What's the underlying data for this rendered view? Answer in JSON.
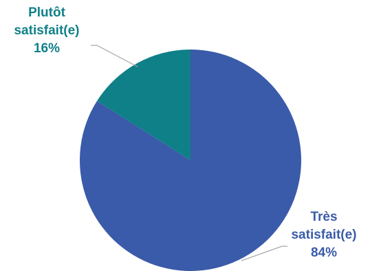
{
  "chart_data": {
    "type": "pie",
    "start_angle_deg": 0,
    "direction": "clockwise",
    "slices": [
      {
        "id": "tres",
        "name_line1": "Très",
        "name_line2": "satisfait(e)",
        "value": 84,
        "value_label": "84%",
        "color": "#3A5BA9",
        "label_color": "#3A5BA9"
      },
      {
        "id": "plutot",
        "name_line1": "Plutôt",
        "name_line2": "satisfait(e)",
        "value": 16,
        "value_label": "16%",
        "color": "#0F8088",
        "label_color": "#0F8088"
      }
    ],
    "leader_line_color": "#A6A6A6"
  }
}
